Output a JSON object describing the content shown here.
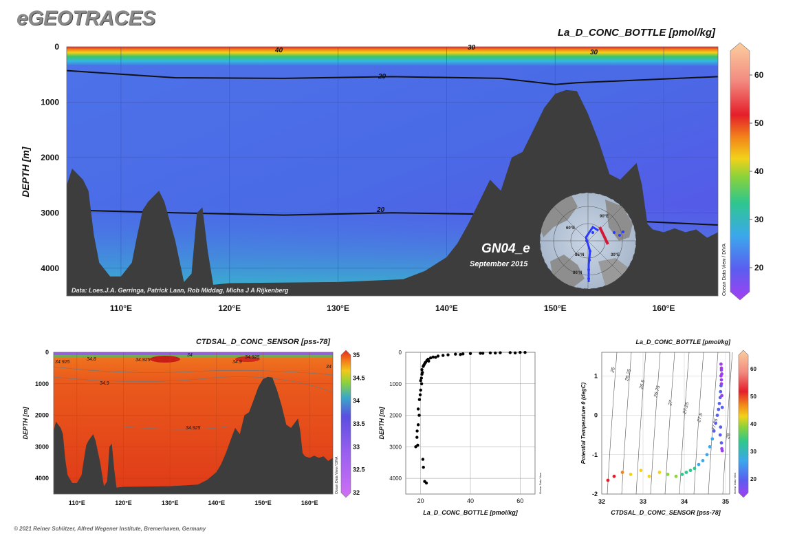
{
  "brand": "eGEOTRACES",
  "footer": "© 2021 Reiner Schlitzer, Alfred Wegener Institute, Bremerhaven, Germany",
  "main_section": {
    "title": "La_D_CONC_BOTTLE [pmol/kg]",
    "ylabel": "DEPTH [m]",
    "y_ticks": [
      "0",
      "1000",
      "2000",
      "3000",
      "4000"
    ],
    "x_ticks": [
      "110°E",
      "120°E",
      "130°E",
      "140°E",
      "150°E",
      "160°E"
    ],
    "colorbar_ticks": [
      "60",
      "50",
      "40",
      "30",
      "20"
    ],
    "colorbar_side_label": "Ocean Data View / DIVA",
    "contour_labels": [
      "40",
      "30",
      "30",
      "20",
      "20"
    ],
    "cruise_label": "GN04_e",
    "cruise_date": "September 2015",
    "data_credit": "Data: Loes.J.A. Gerringa, Patrick Laan, Rob Middag, Micha J A Rijkenberg",
    "inset_map_labels": [
      "85°N",
      "80°N",
      "90°E",
      "60°E",
      "30°E"
    ]
  },
  "salinity_section": {
    "title": "CTDSAL_D_CONC_SENSOR [pss-78]",
    "ylabel": "DEPTH [m]",
    "y_ticks": [
      "0",
      "1000",
      "2000",
      "3000",
      "4000"
    ],
    "x_ticks": [
      "110°E",
      "120°E",
      "130°E",
      "140°E",
      "150°E",
      "160°E"
    ],
    "colorbar_ticks": [
      "35",
      "34.5",
      "34",
      "33.5",
      "33",
      "32.5",
      "32"
    ],
    "colorbar_side_label": "Ocean Data View / DIVA",
    "contour_labels": [
      "34.925",
      "34.8",
      "34.925",
      "34",
      "34.925",
      "34.9",
      "34.9",
      "34.925",
      "34"
    ]
  },
  "profile_plot": {
    "xlabel": "La_D_CONC_BOTTLE [pmol/kg]",
    "ylabel": "DEPTH [m]",
    "x_ticks": [
      "20",
      "40",
      "60"
    ],
    "y_ticks": [
      "0",
      "1000",
      "2000",
      "3000",
      "4000"
    ],
    "side_label": "Ocean Data View"
  },
  "ts_plot": {
    "title": "La_D_CONC_BOTTLE [pmol/kg]",
    "xlabel": "CTDSAL_D_CONC_SENSOR [pss-78]",
    "ylabel": "Potential Temperature θ (degC)",
    "x_ticks": [
      "32",
      "33",
      "34",
      "35"
    ],
    "y_ticks": [
      "1",
      "0",
      "-1",
      "-2"
    ],
    "colorbar_ticks": [
      "60",
      "50",
      "40",
      "30",
      "20"
    ],
    "side_label": "Ocean Data View",
    "isopycnal_labels": [
      "26",
      "26.25",
      "26.5",
      "26.75",
      "27",
      "27.25",
      "27.5",
      "27.75",
      "28"
    ]
  },
  "colors": {
    "seafloor": "#3d3d3d",
    "background_water": "#4a6ee6",
    "colormap": [
      "#9b3df0",
      "#4a6ee6",
      "#33b8e0",
      "#3dc46a",
      "#f2d21a",
      "#f28a1a",
      "#e8222a",
      "#f5a080",
      "#fbd0a8"
    ]
  },
  "chart_data": [
    {
      "type": "heatmap",
      "title": "La_D_CONC_BOTTLE [pmol/kg]",
      "xlabel": "",
      "ylabel": "DEPTH [m]",
      "xlim": [
        105,
        165
      ],
      "ylim": [
        4500,
        0
      ],
      "colorbar_range": [
        15,
        65
      ],
      "contours": [
        {
          "level": 20,
          "x": [
            105,
            115,
            125,
            135,
            145,
            150,
            152,
            160,
            165
          ],
          "y": [
            430,
            560,
            570,
            540,
            570,
            680,
            650,
            580,
            540
          ]
        },
        {
          "level": 20,
          "x": [
            105,
            115,
            125,
            135,
            145,
            155,
            165
          ],
          "y": [
            2950,
            3000,
            3040,
            3000,
            3030,
            3130,
            3220
          ]
        }
      ],
      "seafloor": {
        "x": [
          105,
          105.5,
          106.5,
          107,
          107.5,
          108,
          109,
          110,
          111,
          111.5,
          112,
          112.5,
          113,
          113.5,
          114,
          115,
          115.8,
          116.5,
          117,
          117.5,
          118,
          118.5,
          120,
          130,
          136,
          138,
          140,
          141,
          142,
          143,
          144,
          145,
          146,
          147,
          148,
          149,
          150,
          151,
          152,
          153,
          154,
          155,
          156,
          157,
          157.5,
          158,
          158.5,
          159,
          160,
          161,
          162,
          163,
          164,
          165
        ],
        "y": [
          2500,
          2200,
          2400,
          2600,
          3400,
          3900,
          4150,
          4150,
          3900,
          3400,
          2950,
          2800,
          2700,
          2600,
          2800,
          3500,
          4250,
          4100,
          3000,
          2900,
          3700,
          4300,
          4270,
          4250,
          4200,
          4050,
          3800,
          3550,
          3200,
          2800,
          2400,
          2600,
          2000,
          1900,
          1500,
          1100,
          850,
          780,
          800,
          1200,
          1700,
          2300,
          2400,
          2200,
          2100,
          2500,
          3200,
          3300,
          3350,
          3280,
          3350,
          3300,
          3450,
          3350
        ]
      }
    },
    {
      "type": "heatmap",
      "title": "CTDSAL_D_CONC_SENSOR [pss-78]",
      "xlabel": "",
      "ylabel": "DEPTH [m]",
      "xlim": [
        105,
        165
      ],
      "ylim": [
        4500,
        0
      ],
      "colorbar_range": [
        32,
        35
      ]
    },
    {
      "type": "scatter",
      "title": "",
      "xlabel": "La_D_CONC_BOTTLE [pmol/kg]",
      "ylabel": "DEPTH [m]",
      "xlim": [
        14,
        66
      ],
      "ylim": [
        4500,
        0
      ],
      "x": [
        18,
        18.5,
        19,
        19,
        19.5,
        20,
        20,
        20.5,
        20.5,
        21,
        21.5,
        22,
        22.5,
        23,
        24,
        25,
        27,
        29,
        31,
        34,
        37,
        40,
        44,
        48,
        52,
        56,
        60,
        62,
        58,
        50,
        45,
        36,
        26,
        23,
        21.8,
        21.2,
        20.7,
        20.3,
        19.8,
        19.4,
        18.6,
        18.8,
        20.9,
        21.1,
        21.6,
        22.3,
        23.2,
        20.4
      ],
      "y": [
        3000,
        2700,
        2300,
        1800,
        1500,
        1200,
        900,
        700,
        550,
        450,
        380,
        320,
        260,
        220,
        180,
        150,
        120,
        100,
        80,
        60,
        50,
        40,
        30,
        20,
        15,
        10,
        5,
        5,
        20,
        25,
        30,
        70,
        160,
        230,
        330,
        420,
        640,
        820,
        1350,
        2000,
        2500,
        2950,
        3400,
        3650,
        4100,
        4150,
        280,
        1000
      ]
    },
    {
      "type": "scatter",
      "title": "La_D_CONC_BOTTLE [pmol/kg]",
      "xlabel": "CTDSAL_D_CONC_SENSOR [pss-78]",
      "ylabel": "Potential Temperature θ (degC)",
      "xlim": [
        32,
        35.1
      ],
      "ylim": [
        -2,
        1.6
      ],
      "x": [
        32.15,
        32.3,
        32.5,
        32.7,
        32.95,
        33.15,
        33.4,
        33.6,
        33.8,
        33.95,
        34.05,
        34.15,
        34.25,
        34.35,
        34.45,
        34.55,
        34.62,
        34.68,
        34.72,
        34.76,
        34.8,
        34.83,
        34.85,
        34.87,
        34.88,
        34.89,
        34.9,
        34.91,
        34.9,
        34.89,
        34.88,
        34.87,
        34.9,
        34.91,
        34.92,
        34.92,
        34.91,
        34.9,
        34.89,
        34.9
      ],
      "y": [
        -1.65,
        -1.55,
        -1.45,
        -1.5,
        -1.4,
        -1.55,
        -1.45,
        -1.5,
        -1.55,
        -1.5,
        -1.45,
        -1.4,
        -1.35,
        -1.25,
        -1.15,
        -1.0,
        -0.8,
        -0.6,
        -0.4,
        -0.2,
        0.0,
        0.15,
        0.3,
        0.45,
        0.6,
        0.75,
        0.9,
        1.05,
        1.2,
        1.3,
        -0.3,
        -0.5,
        -0.7,
        -0.85,
        -0.9,
        0.2,
        0.5,
        0.8,
        1.0,
        1.15
      ],
      "color_values": [
        60,
        55,
        48,
        45,
        47,
        42,
        43,
        40,
        36,
        34,
        33,
        31,
        30,
        29,
        28,
        27,
        26,
        25,
        24,
        23,
        22,
        22,
        21,
        21,
        20,
        20,
        19,
        19,
        18,
        18,
        22,
        21,
        20,
        19,
        19,
        20,
        19,
        18,
        18,
        17
      ]
    }
  ]
}
